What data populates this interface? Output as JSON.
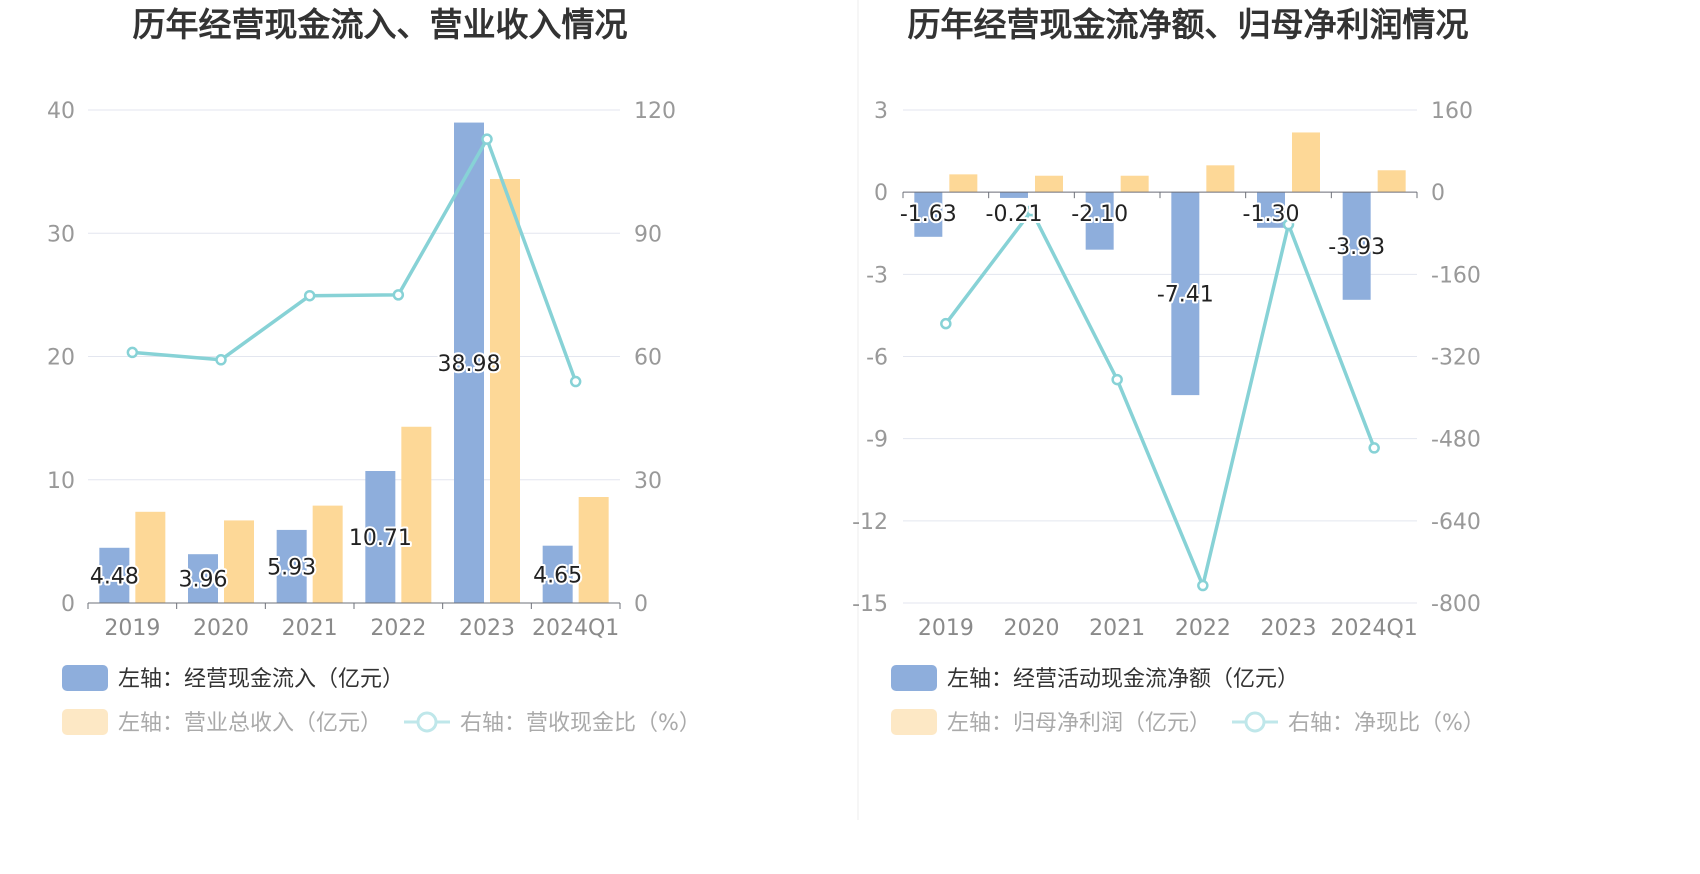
{
  "colors": {
    "bar_primary": "#8eaedc",
    "bar_secondary": "#fdd897",
    "line": "#87d2d6",
    "grid": "#e3e6ef",
    "axis": "#6e7079",
    "legend_active_text": "#333333",
    "legend_faded_text": "#aaaaaa",
    "legend_faded_bar": "#fde8c5",
    "legend_faded_line": "#bfe7ea"
  },
  "chart_data": [
    {
      "type": "bar",
      "title": "历年经营现金流入、营业收入情况",
      "categories": [
        "2019",
        "2020",
        "2021",
        "2022",
        "2023",
        "2024Q1"
      ],
      "left_axis": {
        "ylim": [
          0,
          40
        ],
        "ticks": [
          "0",
          "10",
          "20",
          "30",
          "40"
        ]
      },
      "right_axis": {
        "ylim": [
          0,
          120
        ],
        "ticks": [
          "0",
          "30",
          "60",
          "90",
          "120"
        ]
      },
      "series": [
        {
          "name": "左轴：经营现金流入（亿元）",
          "axis": "left",
          "kind": "bar",
          "values": [
            4.48,
            3.96,
            5.93,
            10.71,
            38.98,
            4.65
          ],
          "labels": [
            "4.48",
            "3.96",
            "5.93",
            "10.71",
            "38.98",
            "4.65"
          ]
        },
        {
          "name": "左轴：营业总收入（亿元）",
          "axis": "left",
          "kind": "bar",
          "values": [
            7.4,
            6.7,
            7.9,
            14.3,
            34.4,
            8.6
          ]
        },
        {
          "name": "右轴：营收现金比（%）",
          "axis": "right",
          "kind": "line",
          "values": [
            61.0,
            59.2,
            74.8,
            75.0,
            112.9,
            53.9
          ]
        }
      ],
      "legend": [
        {
          "label": "左轴：经营现金流入（亿元）",
          "icon": "bar",
          "active": true
        },
        {
          "label": "左轴：营业总收入（亿元）",
          "icon": "bar",
          "active": false
        },
        {
          "label": "右轴：营收现金比（%）",
          "icon": "line",
          "active": false
        }
      ],
      "legend_placement": "bottom",
      "grid": true
    },
    {
      "type": "bar",
      "title": "历年经营现金流净额、归母净利润情况",
      "categories": [
        "2019",
        "2020",
        "2021",
        "2022",
        "2023",
        "2024Q1"
      ],
      "left_axis": {
        "ylim": [
          -15,
          3
        ],
        "ticks": [
          "-15",
          "-12",
          "-9",
          "-6",
          "-3",
          "0",
          "3"
        ]
      },
      "right_axis": {
        "ylim": [
          -800,
          160
        ],
        "ticks": [
          "-800",
          "-640",
          "-480",
          "-320",
          "-160",
          "0",
          "160"
        ]
      },
      "series": [
        {
          "name": "左轴：经营活动现金流净额（亿元）",
          "axis": "left",
          "kind": "bar",
          "values": [
            -1.63,
            -0.21,
            -2.1,
            -7.41,
            -1.3,
            -3.93
          ],
          "labels": [
            "-1.63",
            "-0.21",
            "-2.10",
            "-7.41",
            "-1.30",
            "-3.93"
          ]
        },
        {
          "name": "左轴：归母净利润（亿元）",
          "axis": "left",
          "kind": "bar",
          "values": [
            0.65,
            0.6,
            0.6,
            0.98,
            2.18,
            0.8
          ]
        },
        {
          "name": "右轴：净现比（%）",
          "axis": "right",
          "kind": "line",
          "values": [
            -256,
            -36,
            -365,
            -766,
            -63,
            -498
          ]
        }
      ],
      "legend": [
        {
          "label": "左轴：经营活动现金流净额（亿元）",
          "icon": "bar",
          "active": true
        },
        {
          "label": "左轴：归母净利润（亿元）",
          "icon": "bar",
          "active": false
        },
        {
          "label": "右轴：净现比（%）",
          "icon": "line",
          "active": false
        }
      ],
      "legend_placement": "bottom",
      "grid": true
    }
  ]
}
